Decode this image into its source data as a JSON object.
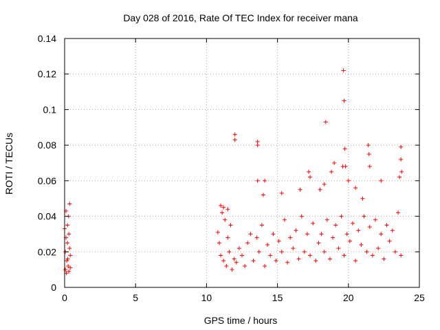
{
  "chart_data": {
    "type": "scatter",
    "title": "Day 028 of 2016, Rate Of TEC Index for receiver mana",
    "xlabel": "GPS time / hours",
    "ylabel": "ROTI / TECUs",
    "xlim": [
      0,
      25
    ],
    "ylim": [
      0,
      0.14
    ],
    "x_ticks": [
      0,
      5,
      10,
      15,
      20,
      25
    ],
    "x_tick_labels": [
      "0",
      "5",
      "10",
      "15",
      "20",
      "25"
    ],
    "y_ticks": [
      0,
      0.02,
      0.04,
      0.06,
      0.08,
      0.1,
      0.12,
      0.14
    ],
    "y_tick_labels": [
      "0",
      "0.02",
      "0.04",
      "0.06",
      "0.08",
      "0.1",
      "0.12",
      "0.14"
    ],
    "grid": true,
    "marker": "+",
    "series": [
      {
        "name": "ROTI",
        "color": "#ff0000",
        "x": [
          0.0,
          0.05,
          0.1,
          0.15,
          0.2,
          0.25,
          0.3,
          0.35,
          0.4,
          0.05,
          0.12,
          0.2,
          0.28,
          0.35,
          0.1,
          0.22,
          0.3,
          0.4,
          10.8,
          10.9,
          11.0,
          11.1,
          11.2,
          11.3,
          11.4,
          11.5,
          11.6,
          11.7,
          11.8,
          11.95,
          12.1,
          12.3,
          12.5,
          12.7,
          12.9,
          13.1,
          13.3,
          13.55,
          13.7,
          13.9,
          14.1,
          14.3,
          14.5,
          14.7,
          14.9,
          15.1,
          15.3,
          15.5,
          15.7,
          15.9,
          16.1,
          16.3,
          16.5,
          16.7,
          16.9,
          17.1,
          17.3,
          17.5,
          17.7,
          17.9,
          18.1,
          18.3,
          18.5,
          18.7,
          18.9,
          19.1,
          19.3,
          19.5,
          19.7,
          19.9,
          20.1,
          20.3,
          20.5,
          20.7,
          20.9,
          21.1,
          21.3,
          21.5,
          21.7,
          21.9,
          22.1,
          22.3,
          22.5,
          22.7,
          22.9,
          23.1,
          23.3,
          23.5,
          23.7,
          11.0,
          11.2,
          11.5,
          12.0,
          12.0,
          13.6,
          13.6,
          13.6,
          14.0,
          14.1,
          15.3,
          16.6,
          17.2,
          17.3,
          18.0,
          18.3,
          18.4,
          18.8,
          19.0,
          19.6,
          19.65,
          19.7,
          19.75,
          19.8,
          20.0,
          20.5,
          21.0,
          21.4,
          21.45,
          21.5,
          22.3,
          23.6,
          23.7,
          23.7,
          23.75
        ],
        "y": [
          0.033,
          0.02,
          0.028,
          0.015,
          0.035,
          0.012,
          0.03,
          0.022,
          0.018,
          0.01,
          0.008,
          0.025,
          0.04,
          0.047,
          0.043,
          0.016,
          0.009,
          0.011,
          0.031,
          0.025,
          0.018,
          0.042,
          0.015,
          0.038,
          0.012,
          0.028,
          0.02,
          0.035,
          0.01,
          0.016,
          0.014,
          0.022,
          0.018,
          0.012,
          0.025,
          0.03,
          0.015,
          0.028,
          0.02,
          0.035,
          0.012,
          0.024,
          0.018,
          0.03,
          0.015,
          0.026,
          0.02,
          0.038,
          0.014,
          0.028,
          0.022,
          0.032,
          0.016,
          0.04,
          0.02,
          0.03,
          0.018,
          0.036,
          0.015,
          0.025,
          0.03,
          0.02,
          0.038,
          0.016,
          0.028,
          0.035,
          0.022,
          0.04,
          0.018,
          0.03,
          0.026,
          0.036,
          0.015,
          0.032,
          0.024,
          0.04,
          0.02,
          0.034,
          0.018,
          0.038,
          0.022,
          0.03,
          0.016,
          0.035,
          0.026,
          0.032,
          0.02,
          0.042,
          0.018,
          0.046,
          0.045,
          0.044,
          0.086,
          0.083,
          0.082,
          0.08,
          0.06,
          0.052,
          0.06,
          0.053,
          0.055,
          0.065,
          0.062,
          0.055,
          0.058,
          0.093,
          0.065,
          0.07,
          0.068,
          0.122,
          0.105,
          0.078,
          0.068,
          0.06,
          0.056,
          0.05,
          0.08,
          0.075,
          0.068,
          0.06,
          0.062,
          0.079,
          0.072,
          0.065
        ]
      }
    ]
  }
}
